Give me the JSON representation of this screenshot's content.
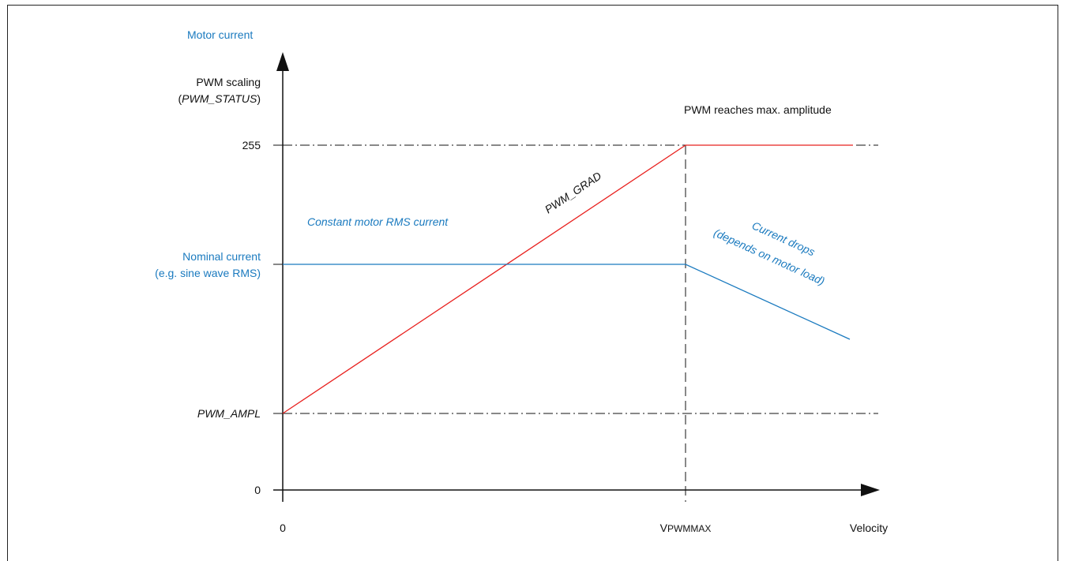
{
  "labels": {
    "motor_current": "Motor current",
    "pwm_scaling_line1": "PWM scaling",
    "pwm_scaling_open": "(",
    "pwm_scaling_var": "PWM_STATUS",
    "pwm_scaling_close": ")",
    "tick_255": "255",
    "nominal_line1": "Nominal current",
    "nominal_line2": "(e.g. sine wave RMS)",
    "pwm_ampl": "PWM_AMPL",
    "tick_0_y": "0",
    "tick_0_x": "0",
    "vpwmmax_main": "V",
    "vpwmmax_sub": "PWMMAX",
    "velocity": "Velocity",
    "pwm_reaches_max": "PWM reaches max. amplitude",
    "pwm_grad": "PWM_GRAD",
    "constant_rms": "Constant motor RMS current",
    "current_drops_line1": "Current drops",
    "current_drops_line2": "(depends on motor load)"
  },
  "colors": {
    "axis": "#111111",
    "pwm_line": "#e8201e",
    "current_line": "#1a7abf",
    "guide": "#111111"
  }
}
